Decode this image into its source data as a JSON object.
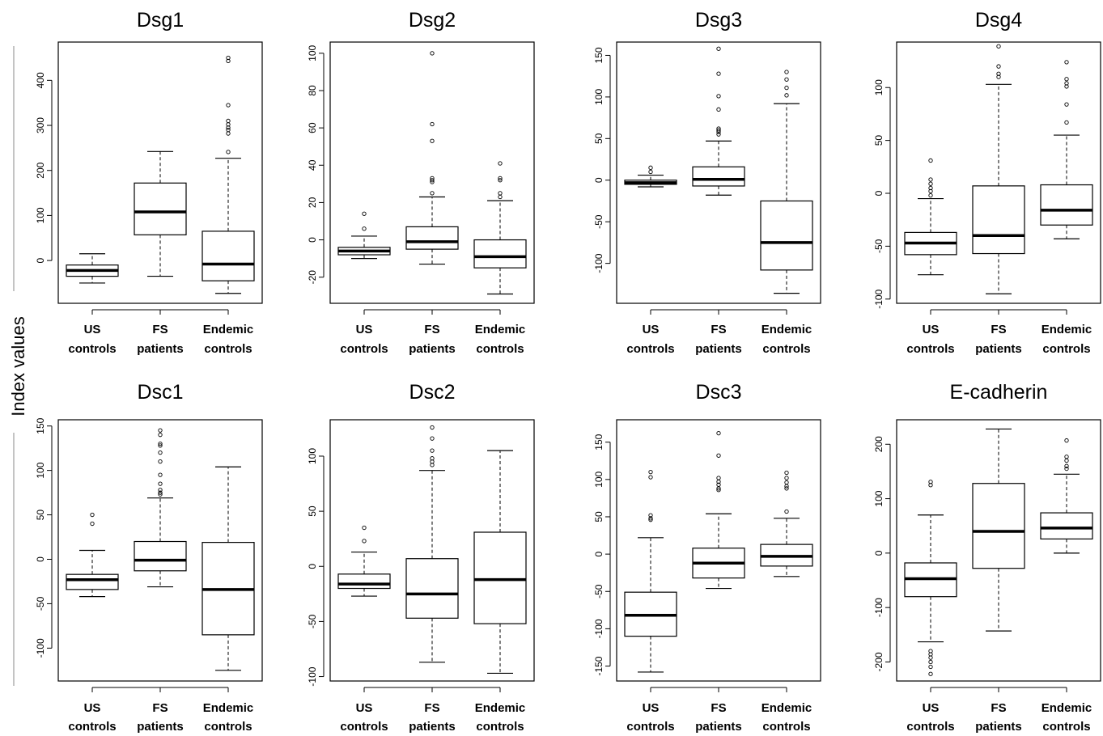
{
  "figure": {
    "shared_ylabel": "Index values"
  },
  "chart_data": [
    {
      "type": "boxplot",
      "title": "Dsg1",
      "categories": [
        [
          "US",
          "controls"
        ],
        [
          "FS",
          "patients"
        ],
        [
          "Endemic",
          "controls"
        ]
      ],
      "yticks": [
        0,
        100,
        200,
        300,
        400
      ],
      "ylim": [
        -95,
        485
      ],
      "boxes": [
        {
          "whisker_low": -50,
          "q1": -35,
          "median": -22,
          "q3": -10,
          "whisker_high": 15,
          "outliers": []
        },
        {
          "whisker_low": -35,
          "q1": 57,
          "median": 108,
          "q3": 172,
          "whisker_high": 242,
          "outliers": []
        },
        {
          "whisker_low": -73,
          "q1": -45,
          "median": -8,
          "q3": 65,
          "whisker_high": 227,
          "outliers": [
            241,
            282,
            290,
            295,
            302,
            310,
            345,
            443,
            450
          ]
        }
      ]
    },
    {
      "type": "boxplot",
      "title": "Dsg2",
      "categories": [
        [
          "US",
          "controls"
        ],
        [
          "FS",
          "patients"
        ],
        [
          "Endemic",
          "controls"
        ]
      ],
      "yticks": [
        -20,
        0,
        20,
        40,
        60,
        80,
        100
      ],
      "ylim": [
        -34,
        106
      ],
      "boxes": [
        {
          "whisker_low": -10,
          "q1": -8,
          "median": -6,
          "q3": -4,
          "whisker_high": 2,
          "outliers": [
            6,
            14
          ]
        },
        {
          "whisker_low": -13,
          "q1": -5,
          "median": -1,
          "q3": 7,
          "whisker_high": 23,
          "outliers": [
            25,
            31,
            32,
            33,
            53,
            62,
            100
          ]
        },
        {
          "whisker_low": -29,
          "q1": -15,
          "median": -9,
          "q3": 0,
          "whisker_high": 21,
          "outliers": [
            23,
            25,
            32,
            33,
            41
          ]
        }
      ]
    },
    {
      "type": "boxplot",
      "title": "Dsg3",
      "categories": [
        [
          "US",
          "controls"
        ],
        [
          "FS",
          "patients"
        ],
        [
          "Endemic",
          "controls"
        ]
      ],
      "yticks": [
        -100,
        -50,
        0,
        50,
        100,
        150
      ],
      "ylim": [
        -148,
        166
      ],
      "boxes": [
        {
          "whisker_low": -8,
          "q1": -5,
          "median": -3,
          "q3": 0,
          "whisker_high": 6,
          "outliers": [
            10,
            15
          ]
        },
        {
          "whisker_low": -18,
          "q1": -7,
          "median": 1,
          "q3": 16,
          "whisker_high": 47,
          "outliers": [
            55,
            58,
            60,
            62,
            85,
            101,
            128,
            158
          ]
        },
        {
          "whisker_low": -136,
          "q1": -108,
          "median": -75,
          "q3": -25,
          "whisker_high": 92,
          "outliers": [
            102,
            111,
            121,
            130
          ]
        }
      ]
    },
    {
      "type": "boxplot",
      "title": "Dsg4",
      "categories": [
        [
          "US",
          "controls"
        ],
        [
          "FS",
          "patients"
        ],
        [
          "Endemic",
          "controls"
        ]
      ],
      "yticks": [
        -100,
        -50,
        0,
        50,
        100
      ],
      "ylim": [
        -104,
        143
      ],
      "boxes": [
        {
          "whisker_low": -77,
          "q1": -58,
          "median": -47,
          "q3": -37,
          "whisker_high": -5,
          "outliers": [
            -2,
            2,
            5,
            9,
            13,
            31
          ]
        },
        {
          "whisker_low": -95,
          "q1": -57,
          "median": -40,
          "q3": 7,
          "whisker_high": 103,
          "outliers": [
            110,
            113,
            120,
            139
          ]
        },
        {
          "whisker_low": -43,
          "q1": -30,
          "median": -16,
          "q3": 8,
          "whisker_high": 55,
          "outliers": [
            67,
            84,
            101,
            104,
            108,
            124
          ]
        }
      ]
    },
    {
      "type": "boxplot",
      "title": "Dsc1",
      "categories": [
        [
          "US",
          "controls"
        ],
        [
          "FS",
          "patients"
        ],
        [
          "Endemic",
          "controls"
        ]
      ],
      "yticks": [
        -100,
        -50,
        0,
        50,
        100,
        150
      ],
      "ylim": [
        -137,
        157
      ],
      "boxes": [
        {
          "whisker_low": -42,
          "q1": -34,
          "median": -23,
          "q3": -17,
          "whisker_high": 10,
          "outliers": [
            40,
            50
          ]
        },
        {
          "whisker_low": -31,
          "q1": -13,
          "median": -1,
          "q3": 20,
          "whisker_high": 69,
          "outliers": [
            73,
            75,
            78,
            85,
            95,
            110,
            120,
            128,
            130,
            140,
            145
          ]
        },
        {
          "whisker_low": -125,
          "q1": -85,
          "median": -34,
          "q3": 19,
          "whisker_high": 104,
          "outliers": []
        }
      ]
    },
    {
      "type": "boxplot",
      "title": "Dsc2",
      "categories": [
        [
          "US",
          "controls"
        ],
        [
          "FS",
          "patients"
        ],
        [
          "Endemic",
          "controls"
        ]
      ],
      "yticks": [
        -100,
        -50,
        0,
        50,
        100
      ],
      "ylim": [
        -104,
        133
      ],
      "boxes": [
        {
          "whisker_low": -27,
          "q1": -20,
          "median": -16,
          "q3": -7,
          "whisker_high": 13,
          "outliers": [
            23,
            35
          ]
        },
        {
          "whisker_low": -87,
          "q1": -47,
          "median": -25,
          "q3": 7,
          "whisker_high": 87,
          "outliers": [
            92,
            95,
            98,
            105,
            116,
            126
          ]
        },
        {
          "whisker_low": -97,
          "q1": -52,
          "median": -12,
          "q3": 31,
          "whisker_high": 105,
          "outliers": []
        }
      ]
    },
    {
      "type": "boxplot",
      "title": "Dsc3",
      "categories": [
        [
          "US",
          "controls"
        ],
        [
          "FS",
          "patients"
        ],
        [
          "Endemic",
          "controls"
        ]
      ],
      "yticks": [
        -150,
        -100,
        -50,
        0,
        50,
        100,
        150
      ],
      "ylim": [
        -170,
        180
      ],
      "boxes": [
        {
          "whisker_low": -158,
          "q1": -110,
          "median": -82,
          "q3": -51,
          "whisker_high": 22,
          "outliers": [
            46,
            48,
            52,
            103,
            110
          ]
        },
        {
          "whisker_low": -46,
          "q1": -32,
          "median": -12,
          "q3": 8,
          "whisker_high": 54,
          "outliers": [
            86,
            88,
            93,
            97,
            102,
            132,
            162
          ]
        },
        {
          "whisker_low": -30,
          "q1": -16,
          "median": -3,
          "q3": 13,
          "whisker_high": 48,
          "outliers": [
            57,
            88,
            91,
            96,
            102,
            109
          ]
        }
      ]
    },
    {
      "type": "boxplot",
      "title": "E-cadherin",
      "categories": [
        [
          "US",
          "controls"
        ],
        [
          "FS",
          "patients"
        ],
        [
          "Endemic",
          "controls"
        ]
      ],
      "yticks": [
        -200,
        -100,
        0,
        100,
        200
      ],
      "ylim": [
        -235,
        245
      ],
      "boxes": [
        {
          "whisker_low": -163,
          "q1": -80,
          "median": -47,
          "q3": -18,
          "whisker_high": 70,
          "outliers": [
            -180,
            -186,
            -192,
            -200,
            -209,
            -222,
            125,
            131
          ]
        },
        {
          "whisker_low": -143,
          "q1": -28,
          "median": 40,
          "q3": 128,
          "whisker_high": 228,
          "outliers": []
        },
        {
          "whisker_low": 0,
          "q1": 26,
          "median": 46,
          "q3": 74,
          "whisker_high": 145,
          "outliers": [
            155,
            160,
            170,
            177,
            207
          ]
        }
      ]
    }
  ]
}
